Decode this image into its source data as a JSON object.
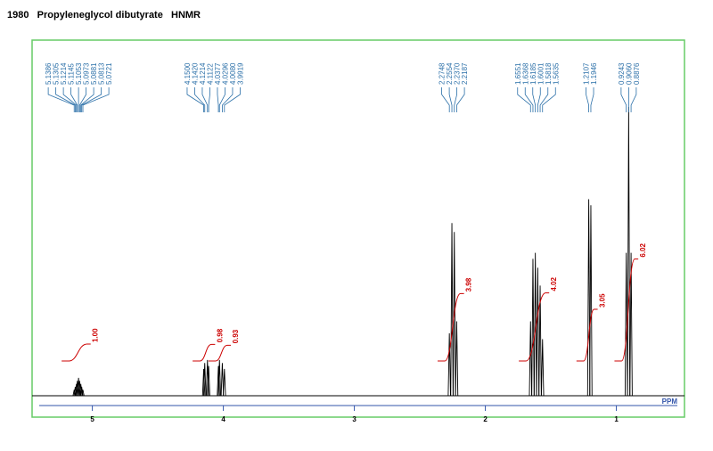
{
  "chart_data": {
    "type": "nmr",
    "title": "1980   Propyleneglycol dibutyrate   HNMR",
    "x_label": "PPM",
    "xlim": [
      5.46,
      0.48
    ],
    "xticks": [
      5,
      4,
      3,
      2,
      1
    ],
    "ylim": [
      0,
      100
    ],
    "frame_color": "#66cc66",
    "spectrum_color": "#000000",
    "label_color": "#2a6fa8",
    "integral_color": "#cc0000",
    "peak_groups": [
      {
        "x": [
          5.1386,
          5.1305,
          5.1214,
          5.1145,
          5.1053,
          5.0973,
          5.0881,
          5.0813,
          5.0721
        ],
        "x_labels": [
          "5.1386",
          "5.1305",
          "5.1214",
          "5.1145",
          "5.1053",
          "5.0973",
          "5.0881",
          "5.0813",
          "5.0721"
        ],
        "values": [
          2,
          3,
          4,
          5,
          6,
          5,
          4,
          3,
          2
        ]
      },
      {
        "x": [
          4.15,
          4.142,
          4.1214,
          4.1122,
          4.0377,
          4.0296,
          4.008,
          3.9919
        ],
        "x_labels": [
          "4.1500",
          "4.1420",
          "4.1214",
          "4.1122",
          "4.0377",
          "4.0296",
          "4.0080",
          "3.9919"
        ],
        "values": [
          9,
          11,
          12,
          10,
          10,
          12,
          11,
          9
        ]
      },
      {
        "x": [
          2.2748,
          2.2554,
          2.237,
          2.2187
        ],
        "x_labels": [
          "2.2748",
          "2.2554",
          "2.2370",
          "2.2187"
        ],
        "values": [
          21,
          58,
          55,
          25
        ]
      },
      {
        "x": [
          1.6551,
          1.6368,
          1.6185,
          1.6001,
          1.5818,
          1.5635
        ],
        "x_labels": [
          "1.6551",
          "1.6368",
          "1.6185",
          "1.6001",
          "1.5818",
          "1.5635"
        ],
        "values": [
          25,
          46,
          48,
          43,
          37,
          19
        ]
      },
      {
        "x": [
          1.2107,
          1.1946
        ],
        "x_labels": [
          "1.2107",
          "1.1946"
        ],
        "values": [
          66,
          64
        ]
      },
      {
        "x": [
          0.9243,
          0.906,
          0.8876
        ],
        "x_labels": [
          "0.9243",
          "0.9060",
          "0.8876"
        ],
        "values": [
          48,
          97,
          48
        ]
      }
    ],
    "integrals": {
      "ranges": [
        [
          5.18,
          5.04
        ],
        [
          4.18,
          4.09
        ],
        [
          4.06,
          3.97
        ],
        [
          2.31,
          2.19
        ],
        [
          1.69,
          1.54
        ],
        [
          1.25,
          1.17
        ],
        [
          0.96,
          0.86
        ]
      ],
      "values": [
        1.0,
        0.98,
        0.93,
        3.98,
        4.02,
        3.05,
        6.02
      ],
      "value_labels": [
        "1.00",
        "0.98",
        "0.93",
        "3.98",
        "4.02",
        "3.05",
        "6.02"
      ]
    }
  }
}
